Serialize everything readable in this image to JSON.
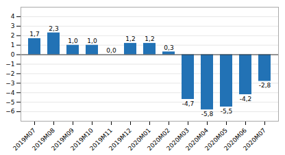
{
  "chart_data": {
    "type": "bar",
    "categories": [
      "2019M07",
      "2019M08",
      "2019M09",
      "2019M10",
      "2019M11",
      "2019M12",
      "2020M01",
      "2020M02",
      "2020M03",
      "2020M04",
      "2020M05",
      "2020M06",
      "2020M07"
    ],
    "values": [
      1.7,
      2.3,
      1.0,
      1.0,
      0.0,
      1.2,
      1.2,
      0.3,
      -4.7,
      -5.8,
      -5.5,
      -4.2,
      -2.8
    ],
    "value_labels": [
      "1,7",
      "2,3",
      "1,0",
      "1,0",
      "0,0",
      "1,2",
      "1,2",
      "0,3",
      "-4,7",
      "-5,8",
      "-5,5",
      "-4,2",
      "-2,8"
    ],
    "color": "#2272b5",
    "ylim": [
      -7,
      5
    ],
    "yticks": [
      -6,
      -5,
      -4,
      -3,
      -2,
      -1,
      0,
      1,
      2,
      3,
      4
    ],
    "grid": true,
    "data_labels": true
  }
}
